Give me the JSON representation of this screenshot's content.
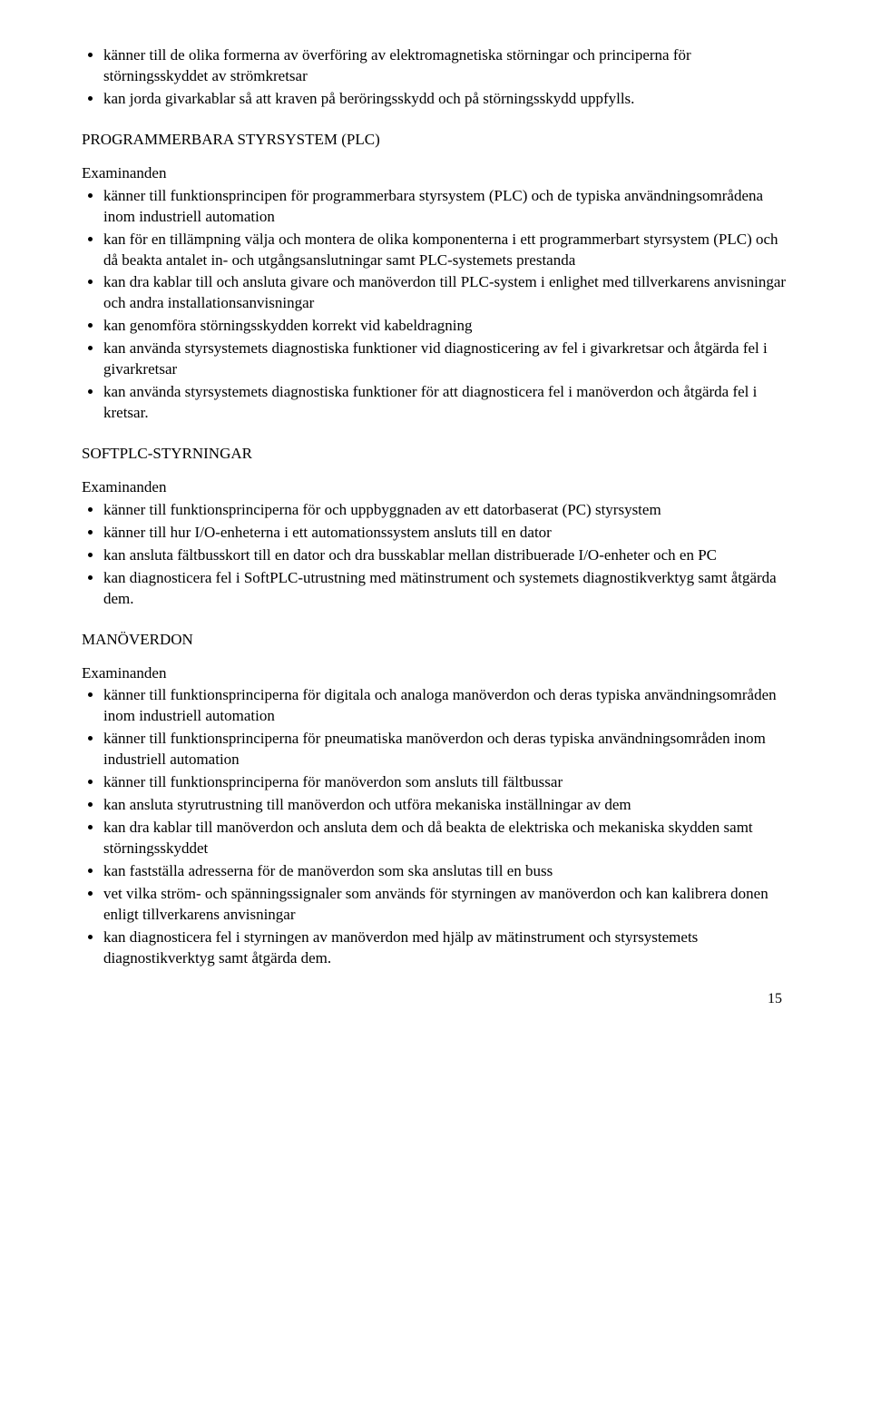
{
  "top_list": {
    "items": [
      "känner till de olika formerna av överföring av elektromagnetiska störningar och principerna för störningsskyddet av strömkretsar",
      "kan jorda givarkablar så att kraven på beröringsskydd och på störningsskydd uppfylls."
    ]
  },
  "section1": {
    "heading": "PROGRAMMERBARA STYRSYSTEM (PLC)",
    "label": "Examinanden",
    "items": [
      "känner till funktionsprincipen för programmerbara styrsystem (PLC) och de typiska användningsområdena inom industriell automation",
      "kan för en tillämpning välja och montera de olika komponenterna i ett programmerbart styrsystem (PLC) och då beakta antalet in- och utgångsanslutningar samt PLC-systemets prestanda",
      "kan dra kablar till och ansluta givare och manöverdon till PLC-system i enlighet med tillverkarens anvisningar och andra installationsanvisningar",
      "kan genomföra störningsskydden korrekt vid kabeldragning",
      "kan använda styrsystemets diagnostiska funktioner vid diagnosticering av fel i givarkretsar och åtgärda fel i givarkretsar",
      "kan använda styrsystemets diagnostiska funktioner för att diagnosticera fel i manöverdon och åtgärda fel i kretsar."
    ]
  },
  "section2": {
    "heading": "SOFTPLC-STYRNINGAR",
    "label": "Examinanden",
    "items": [
      "känner till funktionsprinciperna för och uppbyggnaden av ett datorbaserat (PC) styrsystem",
      "känner till hur I/O-enheterna i ett automationssystem ansluts till en dator",
      "kan ansluta fältbusskort till en dator och dra busskablar mellan distribuerade I/O-enheter och en PC",
      "kan diagnosticera fel i SoftPLC-utrustning med mätinstrument och systemets diagnostikverktyg samt åtgärda dem."
    ]
  },
  "section3": {
    "heading": "MANÖVERDON",
    "label": "Examinanden",
    "items": [
      "känner till funktionsprinciperna för digitala och analoga manöverdon och deras typiska användningsområden inom industriell automation",
      "känner till funktionsprinciperna för pneumatiska manöverdon och deras typiska användningsområden inom industriell automation",
      "känner till funktionsprinciperna för manöverdon som ansluts till fältbussar",
      "kan ansluta styrutrustning till manöverdon och utföra mekaniska inställningar av dem",
      "kan dra kablar till manöverdon och ansluta dem och då beakta de elektriska och mekaniska skydden samt störningsskyddet",
      "kan fastställa adresserna för de manöverdon som ska anslutas till en buss",
      "vet vilka ström- och spänningssignaler som används för styrningen av manöverdon och kan kalibrera donen enligt tillverkarens anvisningar",
      "kan diagnosticera fel i styrningen av manöverdon med hjälp av mätinstrument och styrsystemets diagnostikverktyg samt åtgärda dem."
    ]
  },
  "page_number": "15"
}
